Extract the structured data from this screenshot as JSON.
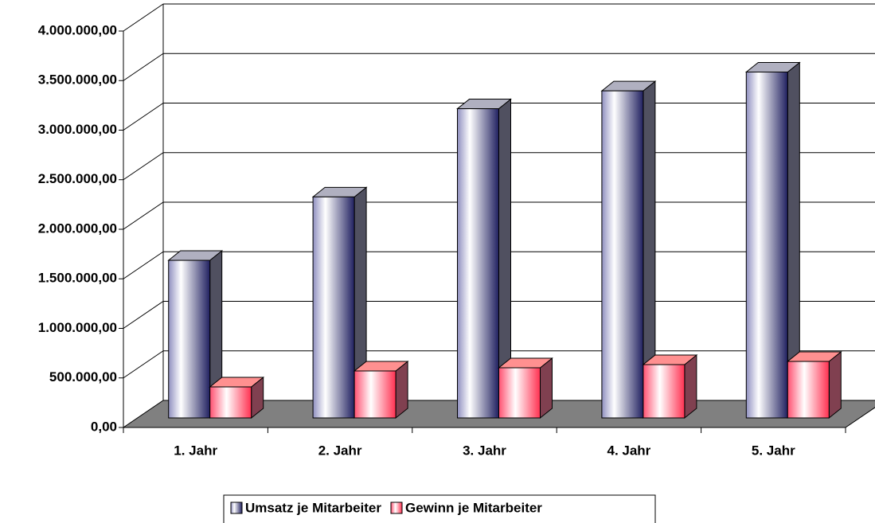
{
  "chart_data": {
    "type": "bar3d",
    "categories": [
      "1. Jahr",
      "2. Jahr",
      "3. Jahr",
      "4. Jahr",
      "5. Jahr"
    ],
    "series": [
      {
        "name": "Umsatz je Mitarbeiter",
        "color": "#202060",
        "values": [
          1590000,
          2230000,
          3120000,
          3300000,
          3490000
        ]
      },
      {
        "name": "Gewinn je Mitarbeiter",
        "color": "#ff3050",
        "values": [
          313000,
          474000,
          506000,
          538000,
          570000
        ]
      }
    ],
    "ylim": [
      0,
      4000000
    ],
    "yticks": [
      {
        "value": 0,
        "label": "0,00"
      },
      {
        "value": 500000,
        "label": "500.000,00"
      },
      {
        "value": 1000000,
        "label": "1.000.000,00"
      },
      {
        "value": 1500000,
        "label": "1.500.000,00"
      },
      {
        "value": 2000000,
        "label": "2.000.000,00"
      },
      {
        "value": 2500000,
        "label": "2.500.000,00"
      },
      {
        "value": 3000000,
        "label": "3.000.000,00"
      },
      {
        "value": 3500000,
        "label": "3.500.000,00"
      },
      {
        "value": 4000000,
        "label": "4.000.000,00"
      }
    ],
    "grid": true,
    "legend": "bottom"
  }
}
